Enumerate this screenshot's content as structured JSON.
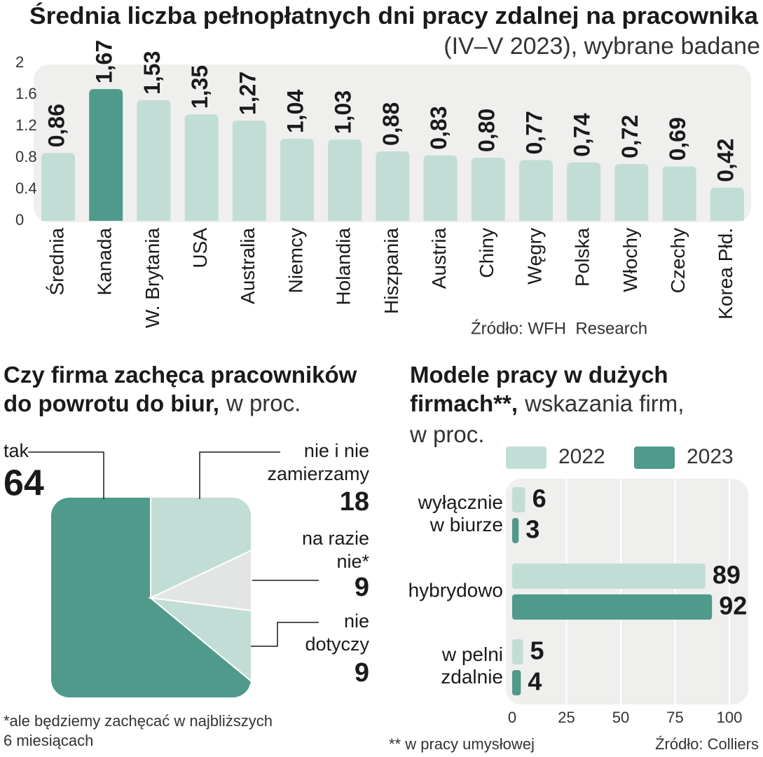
{
  "chart_data": [
    {
      "type": "bar",
      "title": "Średnia liczba pełnopłatnych dni pracy zdalnej na pracownika",
      "subtitle": "(IV–V 2023), wybrane badane",
      "categories": [
        "Średnia",
        "Kanada",
        "W. Brytania",
        "USA",
        "Australia",
        "Niemcy",
        "Holandia",
        "Hiszpania",
        "Austria",
        "Chiny",
        "Węgry",
        "Polska",
        "Włochy",
        "Czechy",
        "Korea Płd."
      ],
      "values": [
        0.86,
        1.67,
        1.53,
        1.35,
        1.27,
        1.04,
        1.03,
        0.88,
        0.83,
        0.8,
        0.77,
        0.74,
        0.72,
        0.69,
        0.42
      ],
      "value_labels": [
        "0,86",
        "1,67",
        "1,53",
        "1,35",
        "1,27",
        "1,04",
        "1,03",
        "0,88",
        "0,83",
        "0,80",
        "0,77",
        "0,74",
        "0,72",
        "0,69",
        "0,42"
      ],
      "colors": [
        "#c2ddd5",
        "#4f9a8b",
        "#c2ddd5",
        "#c2ddd5",
        "#c2ddd5",
        "#c2ddd5",
        "#c2ddd5",
        "#c2ddd5",
        "#c2ddd5",
        "#c2ddd5",
        "#c2ddd5",
        "#c2ddd5",
        "#c2ddd5",
        "#c2ddd5",
        "#c2ddd5"
      ],
      "ylim": [
        0,
        2
      ],
      "yticks": [
        0,
        0.4,
        0.8,
        1.2,
        1.6,
        2
      ],
      "grid": false,
      "source": "Źródło: WFH  Research"
    },
    {
      "type": "pie",
      "title": "Czy firma zachęca pracowników\ndo powrotu do biur,",
      "unit": "w proc.",
      "categories": [
        "tak",
        "nie i nie\nzamierzamy",
        "na razie\nnie*",
        "nie\ndotyczy"
      ],
      "values": [
        64,
        18,
        9,
        9
      ],
      "colors": [
        "#4f9a8b",
        "#c2ddd5",
        "#e3e5e5",
        "#c2ddd5"
      ],
      "footnote": "*ale będziemy zachęcać w najbliższych\n6 miesiącach"
    },
    {
      "type": "hbar",
      "title": "Modele pracy w dużych\nfirmach**,",
      "subtitle": "wskazania firm,\nw proc.",
      "categories": [
        "wyłącznie\nw biurze",
        "hybrydowo",
        "w pelni\nzdalnie"
      ],
      "series": [
        {
          "name": "2022",
          "color": "#c2ddd5",
          "values": [
            6,
            89,
            5
          ]
        },
        {
          "name": "2023",
          "color": "#4f9a8b",
          "values": [
            3,
            92,
            4
          ]
        }
      ],
      "xlim": [
        0,
        100
      ],
      "xticks": [
        0,
        25,
        50,
        75,
        100
      ],
      "grid": true,
      "legend": "top",
      "footnote": "** w pracy umysłowej",
      "source": "Źródło: Colliers"
    }
  ]
}
